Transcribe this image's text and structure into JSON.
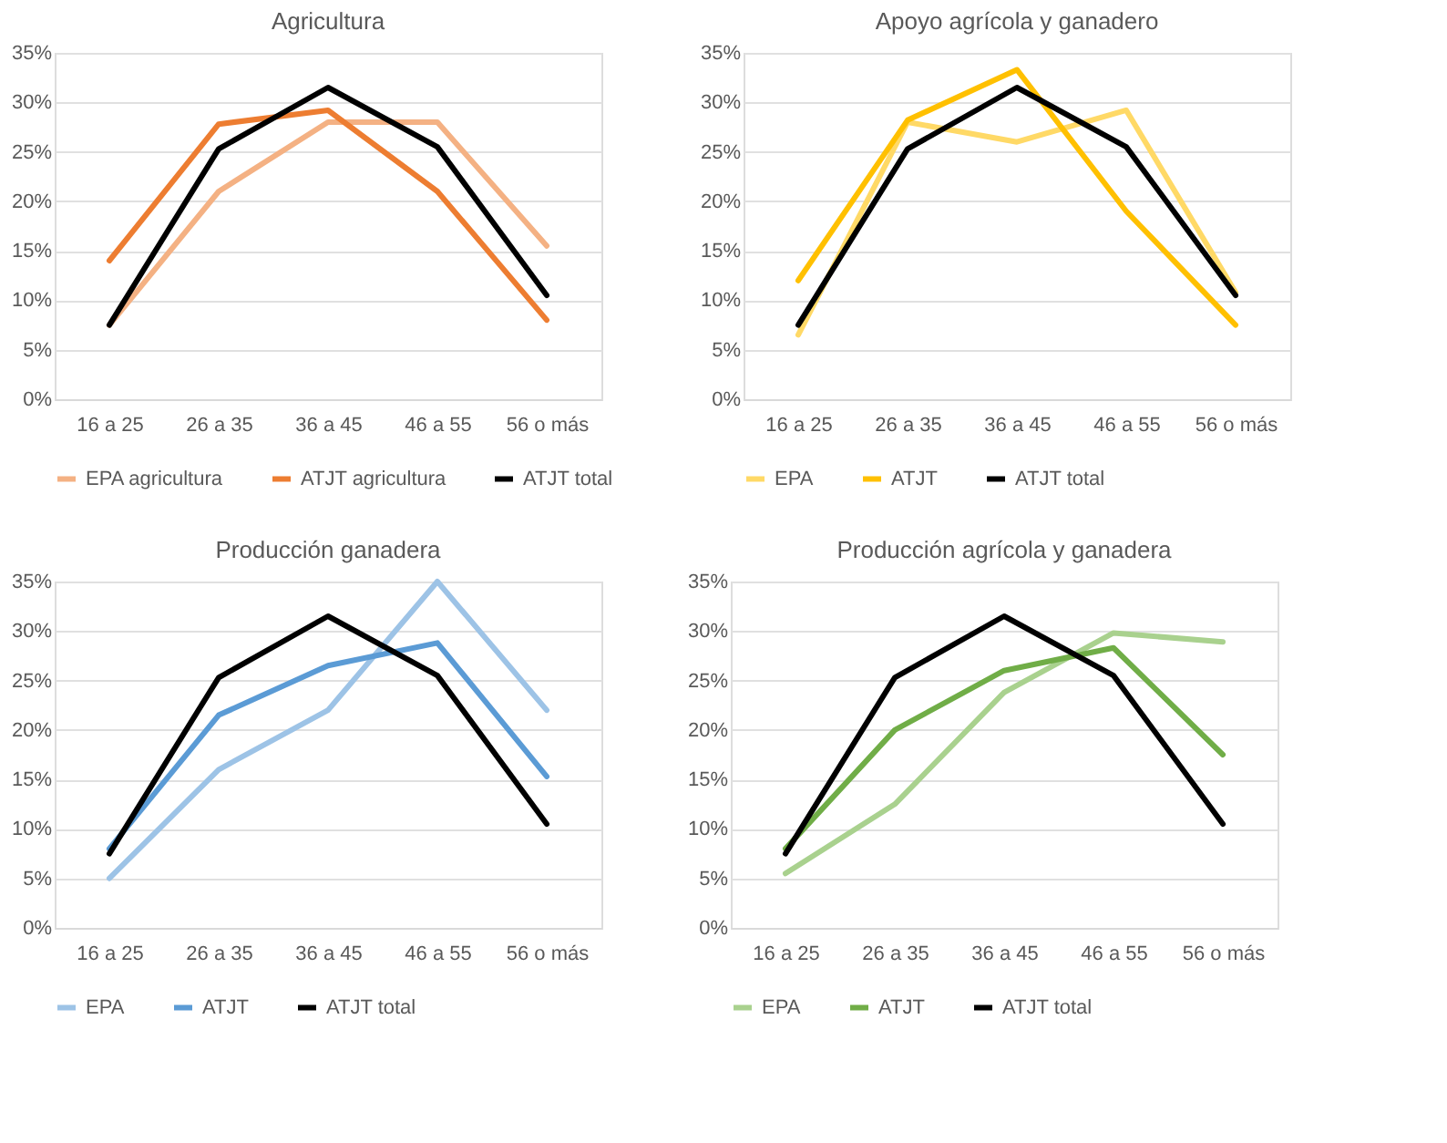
{
  "chart_data": [
    {
      "type": "line",
      "title": "Agricultura",
      "categories": [
        "16 a 25",
        "26 a 35",
        "36 a 45",
        "46 a 55",
        "56 o más"
      ],
      "series": [
        {
          "name": "EPA agricultura",
          "color": "#f4b183",
          "values": [
            7.5,
            21,
            28,
            28,
            15.5
          ]
        },
        {
          "name": "ATJT agricultura",
          "color": "#ed7d31",
          "values": [
            14,
            27.8,
            29.2,
            21,
            8
          ]
        },
        {
          "name": "ATJT total",
          "color": "#000000",
          "values": [
            7.5,
            25.3,
            31.5,
            25.5,
            10.5
          ]
        }
      ],
      "ylim": [
        0,
        35
      ],
      "yticks": [
        {
          "value": 0,
          "label": "0%"
        },
        {
          "value": 5,
          "label": "5%"
        },
        {
          "value": 10,
          "label": "10%"
        },
        {
          "value": 15,
          "label": "15%"
        },
        {
          "value": 20,
          "label": "20%"
        },
        {
          "value": 25,
          "label": "25%"
        },
        {
          "value": 30,
          "label": "30%"
        },
        {
          "value": 35,
          "label": "35%"
        }
      ],
      "grid": "y",
      "legend": "bottom",
      "marker": "none",
      "line_style": "solid"
    },
    {
      "type": "line",
      "title": "Apoyo agrícola y ganadero",
      "categories": [
        "16 a 25",
        "26 a 35",
        "36 a 45",
        "46 a 55",
        "56 o más"
      ],
      "series": [
        {
          "name": "EPA",
          "color": "#ffd966",
          "values": [
            6.5,
            28,
            26,
            29.2,
            10.8
          ]
        },
        {
          "name": "ATJT",
          "color": "#ffc000",
          "values": [
            12,
            28.2,
            33.3,
            19,
            7.5
          ]
        },
        {
          "name": "ATJT total",
          "color": "#000000",
          "values": [
            7.5,
            25.3,
            31.5,
            25.5,
            10.5
          ]
        }
      ],
      "ylim": [
        0,
        35
      ],
      "yticks": [
        {
          "value": 0,
          "label": "0%"
        },
        {
          "value": 5,
          "label": "5%"
        },
        {
          "value": 10,
          "label": "10%"
        },
        {
          "value": 15,
          "label": "15%"
        },
        {
          "value": 20,
          "label": "20%"
        },
        {
          "value": 25,
          "label": "25%"
        },
        {
          "value": 30,
          "label": "30%"
        },
        {
          "value": 35,
          "label": "35%"
        }
      ],
      "grid": "y",
      "legend": "bottom",
      "marker": "none",
      "line_style": "solid"
    },
    {
      "type": "line",
      "title": "Producción ganadera",
      "categories": [
        "16 a 25",
        "26 a 35",
        "36 a 45",
        "46 a 55",
        "56 o más"
      ],
      "series": [
        {
          "name": "EPA",
          "color": "#9dc3e6",
          "values": [
            5,
            16,
            22,
            35,
            22
          ]
        },
        {
          "name": "ATJT",
          "color": "#5b9bd5",
          "values": [
            8,
            21.5,
            26.5,
            28.8,
            15.3
          ]
        },
        {
          "name": "ATJT total",
          "color": "#000000",
          "values": [
            7.5,
            25.3,
            31.5,
            25.5,
            10.5
          ]
        }
      ],
      "ylim": [
        0,
        35
      ],
      "yticks": [
        {
          "value": 0,
          "label": "0%"
        },
        {
          "value": 5,
          "label": "5%"
        },
        {
          "value": 10,
          "label": "10%"
        },
        {
          "value": 15,
          "label": "15%"
        },
        {
          "value": 20,
          "label": "20%"
        },
        {
          "value": 25,
          "label": "25%"
        },
        {
          "value": 30,
          "label": "30%"
        },
        {
          "value": 35,
          "label": "35%"
        }
      ],
      "grid": "y",
      "legend": "bottom",
      "marker": "none",
      "line_style": "solid"
    },
    {
      "type": "line",
      "title": "Producción agrícola y ganadera",
      "categories": [
        "16 a 25",
        "26 a 35",
        "36 a 45",
        "46 a 55",
        "56 o más"
      ],
      "series": [
        {
          "name": "EPA",
          "color": "#a9d18e",
          "values": [
            5.5,
            12.5,
            23.8,
            29.8,
            28.9
          ]
        },
        {
          "name": "ATJT",
          "color": "#70ad47",
          "values": [
            8,
            20,
            26,
            28.3,
            17.5
          ]
        },
        {
          "name": "ATJT total",
          "color": "#000000",
          "values": [
            7.5,
            25.3,
            31.5,
            25.5,
            10.5
          ]
        }
      ],
      "ylim": [
        0,
        35
      ],
      "yticks": [
        {
          "value": 0,
          "label": "0%"
        },
        {
          "value": 5,
          "label": "5%"
        },
        {
          "value": 10,
          "label": "10%"
        },
        {
          "value": 15,
          "label": "15%"
        },
        {
          "value": 20,
          "label": "20%"
        },
        {
          "value": 25,
          "label": "25%"
        },
        {
          "value": 30,
          "label": "30%"
        },
        {
          "value": 35,
          "label": "35%"
        }
      ],
      "grid": "y",
      "legend": "bottom",
      "marker": "none",
      "line_style": "solid"
    }
  ]
}
